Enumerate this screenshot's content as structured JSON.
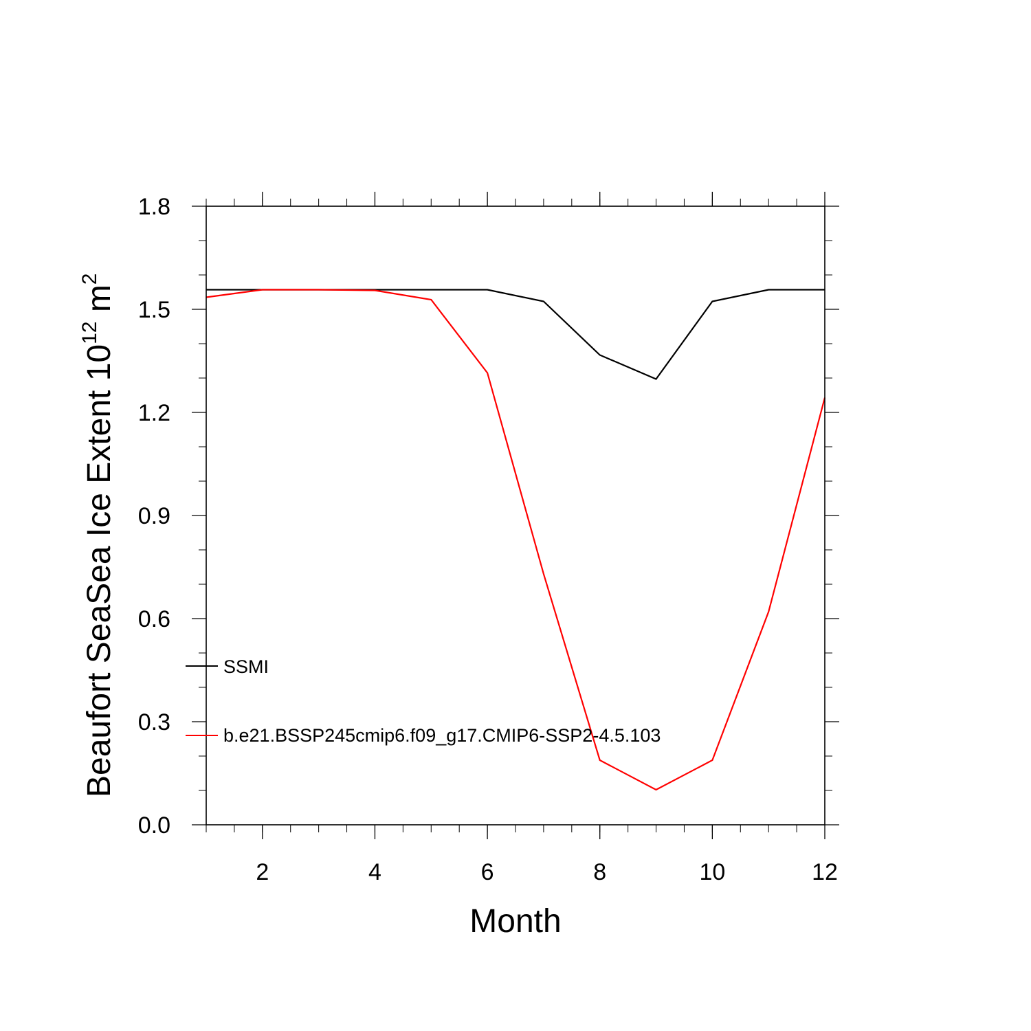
{
  "chart_data": {
    "type": "line",
    "xlabel": "Month",
    "ylabel_main": "Beaufort SeaSea Ice Extent 10",
    "ylabel_exponent": "12",
    "ylabel_unit": " m",
    "ylabel_unit_exponent": "2",
    "xlim": [
      1,
      12
    ],
    "ylim": [
      0.0,
      1.8
    ],
    "x_ticks": [
      2,
      4,
      6,
      8,
      10,
      12
    ],
    "x_tick_labels": [
      "2",
      "4",
      "6",
      "8",
      "10",
      "12"
    ],
    "y_ticks": [
      0.0,
      0.3,
      0.6,
      0.9,
      1.2,
      1.5,
      1.8
    ],
    "y_tick_labels": [
      "0.0",
      "0.3",
      "0.6",
      "0.9",
      "1.2",
      "1.5",
      "1.8"
    ],
    "grid": false,
    "legend_position": "lower-left inside",
    "x": [
      1,
      2,
      3,
      4,
      5,
      6,
      7,
      8,
      9,
      10,
      11,
      12
    ],
    "series": [
      {
        "name": "SSMI",
        "color": "#000000",
        "values": [
          1.557,
          1.557,
          1.557,
          1.557,
          1.557,
          1.557,
          1.523,
          1.367,
          1.297,
          1.523,
          1.557,
          1.557
        ]
      },
      {
        "name": "b.e21.BSSP245cmip6.f09_g17.CMIP6-SSP2-4.5.103",
        "color": "#ff0000",
        "values": [
          1.535,
          1.557,
          1.557,
          1.555,
          1.528,
          1.315,
          0.73,
          0.188,
          0.102,
          0.188,
          0.62,
          1.243
        ]
      }
    ]
  }
}
